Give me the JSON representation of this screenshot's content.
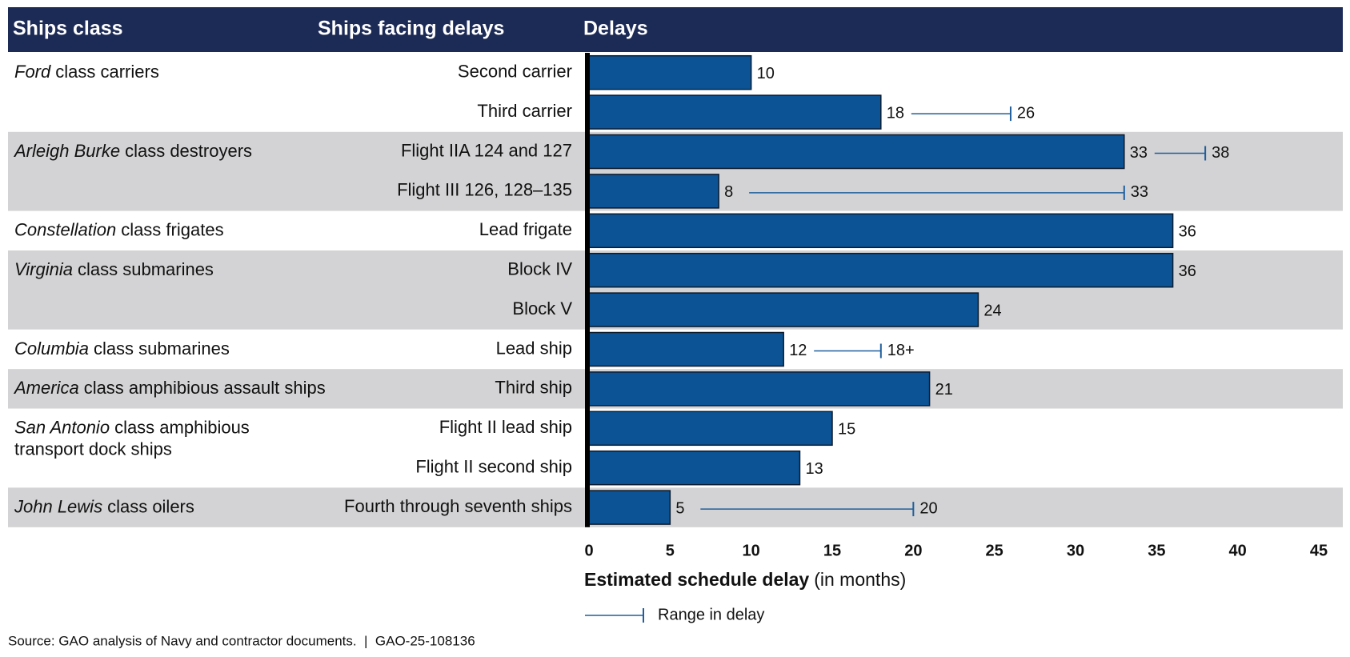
{
  "chart_data": {
    "type": "bar",
    "orientation": "horizontal",
    "columns": [
      "Ships class",
      "Ships facing delays",
      "Delays"
    ],
    "header_color": "#1c2a56",
    "band_color": "#d3d2d4",
    "color": "#0b5394",
    "range_color": "#1f5f9c",
    "groups": [
      {
        "class": {
          "italic": "Ford",
          "rest": [
            "class carriers"
          ]
        },
        "ships": [
          "Second carrier",
          "Third carrier"
        ],
        "values": [
          10,
          18
        ],
        "range_high": [
          null,
          26
        ],
        "range_high_labels": [
          null,
          "26"
        ]
      },
      {
        "class": {
          "italic": "Arleigh Burke",
          "rest": [
            "class destroyers"
          ]
        },
        "ships": [
          "Flight IIA 124 and 127",
          "Flight III 126, 128–135"
        ],
        "values": [
          33,
          8
        ],
        "range_high": [
          38,
          33
        ],
        "range_high_labels": [
          "38",
          "33"
        ]
      },
      {
        "class": {
          "italic": "Constellation",
          "rest": [
            "class frigates"
          ]
        },
        "ships": [
          "Lead frigate"
        ],
        "values": [
          36
        ]
      },
      {
        "class": {
          "italic": "Virginia",
          "rest": [
            "class submarines"
          ]
        },
        "ships": [
          "Block IV",
          "Block V"
        ],
        "values": [
          36,
          24
        ]
      },
      {
        "class": {
          "italic": "Columbia",
          "rest": [
            "class submarines"
          ]
        },
        "ships": [
          "Lead ship"
        ],
        "values": [
          12
        ],
        "range_high": [
          18
        ],
        "range_high_labels": [
          "18+"
        ]
      },
      {
        "class": {
          "italic": "America",
          "rest": [
            "class amphibious assault ships"
          ]
        },
        "ships": [
          "Third ship"
        ],
        "values": [
          21
        ]
      },
      {
        "class": {
          "italic": "San Antonio",
          "rest": [
            "class amphibious",
            "transport dock ships"
          ]
        },
        "ships": [
          "Flight II lead ship",
          "Flight II second ship"
        ],
        "values": [
          15,
          13
        ]
      },
      {
        "class": {
          "italic": "John Lewis",
          "rest": [
            "class oilers"
          ]
        },
        "ships": [
          "Fourth through seventh ships"
        ],
        "values": [
          5
        ],
        "range_high": [
          20
        ],
        "range_high_labels": [
          "20"
        ]
      }
    ],
    "xlim": [
      0,
      45
    ],
    "xticks": [
      0,
      5,
      10,
      15,
      20,
      25,
      30,
      35,
      40,
      45
    ],
    "x_label": {
      "bold": "Estimated schedule delay",
      "rest": "(in months)"
    },
    "legend": "Range in delay",
    "source": "Source: GAO analysis of Navy and contractor documents.  |  GAO-25-108136"
  }
}
